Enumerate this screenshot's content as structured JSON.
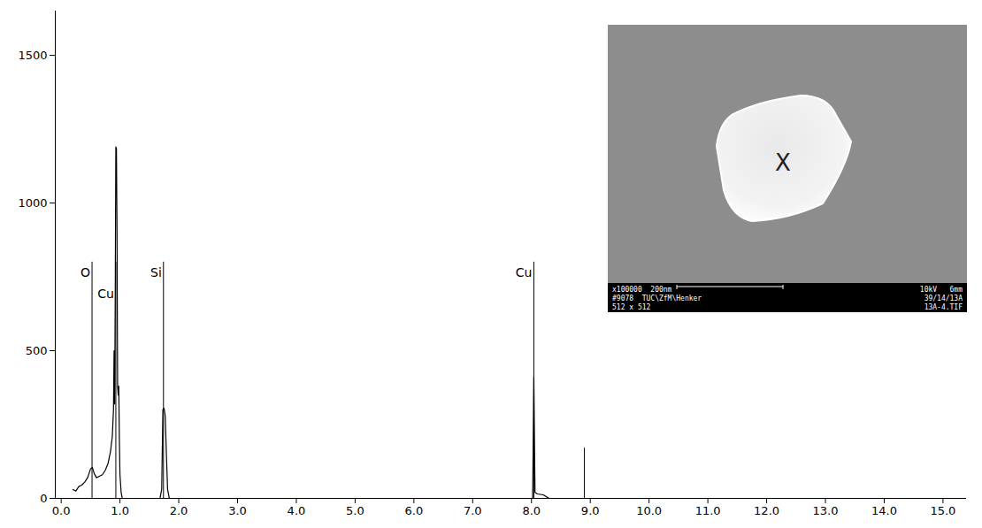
{
  "chart_data": {
    "type": "line",
    "color": "#000000",
    "grid": false,
    "xlim": [
      -0.1,
      15.4
    ],
    "ylim": [
      0,
      1650
    ],
    "xticks": [
      {
        "value": 0,
        "label": "0.0"
      },
      {
        "value": 1,
        "label": "1.0"
      },
      {
        "value": 2,
        "label": "2.0"
      },
      {
        "value": 3,
        "label": "3.0"
      },
      {
        "value": 4,
        "label": "4.0"
      },
      {
        "value": 5,
        "label": "5.0"
      },
      {
        "value": 6,
        "label": "6.0"
      },
      {
        "value": 7,
        "label": "7.0"
      },
      {
        "value": 8,
        "label": "8.0"
      },
      {
        "value": 9,
        "label": "9.0"
      },
      {
        "value": 10,
        "label": "10.0"
      },
      {
        "value": 11,
        "label": "11.0"
      },
      {
        "value": 12,
        "label": "12.0"
      },
      {
        "value": 13,
        "label": "13.0"
      },
      {
        "value": 14,
        "label": "14.0"
      },
      {
        "value": 15,
        "label": "15.0"
      }
    ],
    "yticks": [
      0,
      500,
      1000,
      1500
    ],
    "x": [
      0.2,
      0.25,
      0.3,
      0.35,
      0.4,
      0.45,
      0.5,
      0.53,
      0.56,
      0.6,
      0.65,
      0.7,
      0.75,
      0.8,
      0.84,
      0.87,
      0.89,
      0.9,
      0.91,
      0.92,
      0.93,
      0.94,
      0.95,
      0.96,
      0.97,
      0.98,
      0.99,
      1.0,
      1.02,
      1.04,
      1.6,
      1.68,
      1.71,
      1.73,
      1.75,
      1.77,
      1.79,
      1.81,
      1.84,
      8.0,
      8.02,
      8.04,
      8.06,
      8.1,
      8.2,
      8.3,
      9.1
    ],
    "values": [
      30,
      25,
      40,
      45,
      55,
      70,
      100,
      105,
      85,
      70,
      75,
      80,
      95,
      120,
      160,
      210,
      300,
      500,
      320,
      700,
      1190,
      1185,
      900,
      380,
      350,
      380,
      200,
      80,
      20,
      0,
      0,
      0,
      30,
      300,
      305,
      280,
      150,
      30,
      0,
      0,
      0,
      410,
      20,
      15,
      12,
      0,
      0
    ],
    "markers": [
      {
        "x": 0.525,
        "y": 800,
        "label": "O"
      },
      {
        "x": 0.93,
        "y": 800,
        "label": "Cu"
      },
      {
        "x": 1.74,
        "y": 800,
        "label": "Si"
      },
      {
        "x": 8.04,
        "y": 800,
        "label": "Cu"
      },
      {
        "x": 8.9,
        "y": 170,
        "label": null
      }
    ]
  },
  "inset": {
    "marker": "X",
    "footer_left": [
      "x100000  200nm",
      "#9078  TUC\\ZfM\\Henker",
      "512 x 512"
    ],
    "footer_right": [
      "10kV   6mm",
      "39/14/13A",
      "13A-4.TIF"
    ]
  }
}
